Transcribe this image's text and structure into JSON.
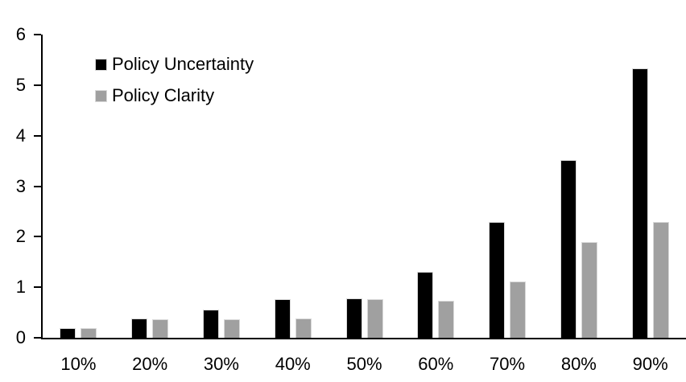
{
  "chart_data": {
    "type": "bar",
    "title": "",
    "xlabel": "",
    "ylabel": "",
    "categories": [
      "10%",
      "20%",
      "30%",
      "40%",
      "50%",
      "60%",
      "70%",
      "80%",
      "90%"
    ],
    "series": [
      {
        "name": "Policy Uncertainty",
        "color": "#000000",
        "values": [
          0.19,
          0.38,
          0.56,
          0.76,
          0.78,
          1.31,
          2.29,
          3.51,
          5.33
        ]
      },
      {
        "name": "Policy Clarity",
        "color": "#a0a0a0",
        "values": [
          0.19,
          0.37,
          0.37,
          0.38,
          0.76,
          0.74,
          1.11,
          1.9,
          2.29
        ]
      }
    ],
    "ylim": [
      0,
      6
    ],
    "yticks": [
      0,
      1,
      2,
      3,
      4,
      5,
      6
    ],
    "grid": false,
    "legend_position": "top-left-inside",
    "axis_color": "#000000",
    "background_color": "#ffffff",
    "bar_border_color": "#d9d9d9"
  }
}
